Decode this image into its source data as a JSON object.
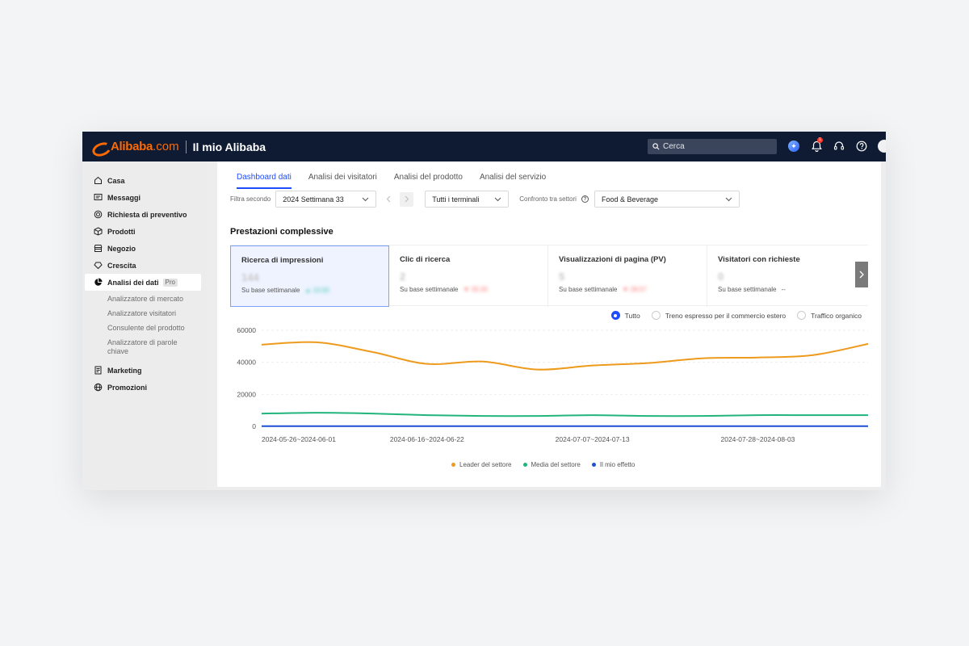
{
  "header": {
    "logo_text": "Alibaba",
    "logo_com": ".com",
    "title": "Il mio Alibaba",
    "search_placeholder": "Cerca",
    "notification_count": "1",
    "colors": {
      "bar": "#0f1b33",
      "brand": "#ff6a00"
    }
  },
  "sidebar": {
    "items": [
      {
        "label": "Casa",
        "icon": "home-icon"
      },
      {
        "label": "Messaggi",
        "icon": "message-icon"
      },
      {
        "label": "Richiesta di preventivo",
        "icon": "rfq-icon"
      },
      {
        "label": "Prodotti",
        "icon": "box-icon"
      },
      {
        "label": "Negozio",
        "icon": "store-icon"
      },
      {
        "label": "Crescita",
        "icon": "growth-icon"
      },
      {
        "label": "Analisi dei dati",
        "icon": "pie-chart-icon",
        "badge": "Pro",
        "active": true
      }
    ],
    "sub_items": [
      "Analizzatore di mercato",
      "Analizzatore visitatori",
      "Consulente del prodotto",
      "Analizzatore di parole chiave"
    ],
    "bottom_items": [
      {
        "label": "Marketing",
        "icon": "marketing-icon"
      },
      {
        "label": "Promozioni",
        "icon": "globe-icon"
      }
    ]
  },
  "tabs": [
    "Dashboard dati",
    "Analisi dei visitatori",
    "Analisi del prodotto",
    "Analisi del servizio"
  ],
  "filters": {
    "filter_label": "Filtra secondo",
    "week": "2024 Settimana 33",
    "terminals": "Tutti i terminali",
    "compare_label": "Confronto tra settori",
    "sector": "Food & Beverage"
  },
  "section_title": "Prestazioni complessive",
  "cards": [
    {
      "title": "Ricerca di impressioni",
      "value": "144",
      "foot": "Su base settimanale",
      "delta": "▲ 10.00",
      "delta_color": "#3bc8b0"
    },
    {
      "title": "Clic di ricerca",
      "value": "2",
      "foot": "Su base settimanale",
      "delta": "▼ 33.33",
      "delta_color": "#ff6b6b"
    },
    {
      "title": "Visualizzazioni di pagina (PV)",
      "value": "5",
      "foot": "Su base settimanale",
      "delta": "▼ 28.57",
      "delta_color": "#ff6b6b"
    },
    {
      "title": "Visitatori con richieste",
      "value": "0",
      "foot": "Su base settimanale",
      "delta": "--",
      "delta_color": "#555555"
    }
  ],
  "radios": [
    {
      "label": "Tutto",
      "checked": true
    },
    {
      "label": "Treno espresso per il commercio estero",
      "checked": false
    },
    {
      "label": "Traffico organico",
      "checked": false
    }
  ],
  "chart_data": {
    "type": "line",
    "x": [
      "2024-05-26~2024-06-01",
      "2024-06-02~2024-06-08",
      "2024-06-09~2024-06-15",
      "2024-06-16~2024-06-22",
      "2024-06-23~2024-06-29",
      "2024-06-30~2024-07-06",
      "2024-07-07~2024-07-13",
      "2024-07-14~2024-07-20",
      "2024-07-21~2024-07-27",
      "2024-07-28~2024-08-03",
      "2024-08-04~2024-08-10",
      "2024-08-11~2024-08-17"
    ],
    "x_tick_labels": [
      "2024-05-26~2024-06-01",
      "2024-06-16~2024-06-22",
      "2024-07-07~2024-07-13",
      "2024-07-28~2024-08-03"
    ],
    "y_ticks": [
      0,
      20000,
      40000,
      60000
    ],
    "ylim": [
      0,
      60000
    ],
    "grid": true,
    "legend_position": "bottom",
    "series": [
      {
        "name": "Leader del settore",
        "color": "#ee9a1d",
        "values": [
          51000,
          52500,
          46500,
          39000,
          40500,
          35500,
          38000,
          39500,
          42500,
          43000,
          44500,
          51500
        ]
      },
      {
        "name": "Media del settore",
        "color": "#21b57c",
        "values": [
          8000,
          8500,
          8000,
          7000,
          6500,
          6500,
          7000,
          6500,
          6500,
          7000,
          7000,
          7000
        ]
      },
      {
        "name": "Il mio effetto",
        "color": "#1f4fd6",
        "values": [
          150,
          150,
          150,
          150,
          150,
          150,
          150,
          150,
          150,
          150,
          150,
          150
        ]
      }
    ]
  }
}
